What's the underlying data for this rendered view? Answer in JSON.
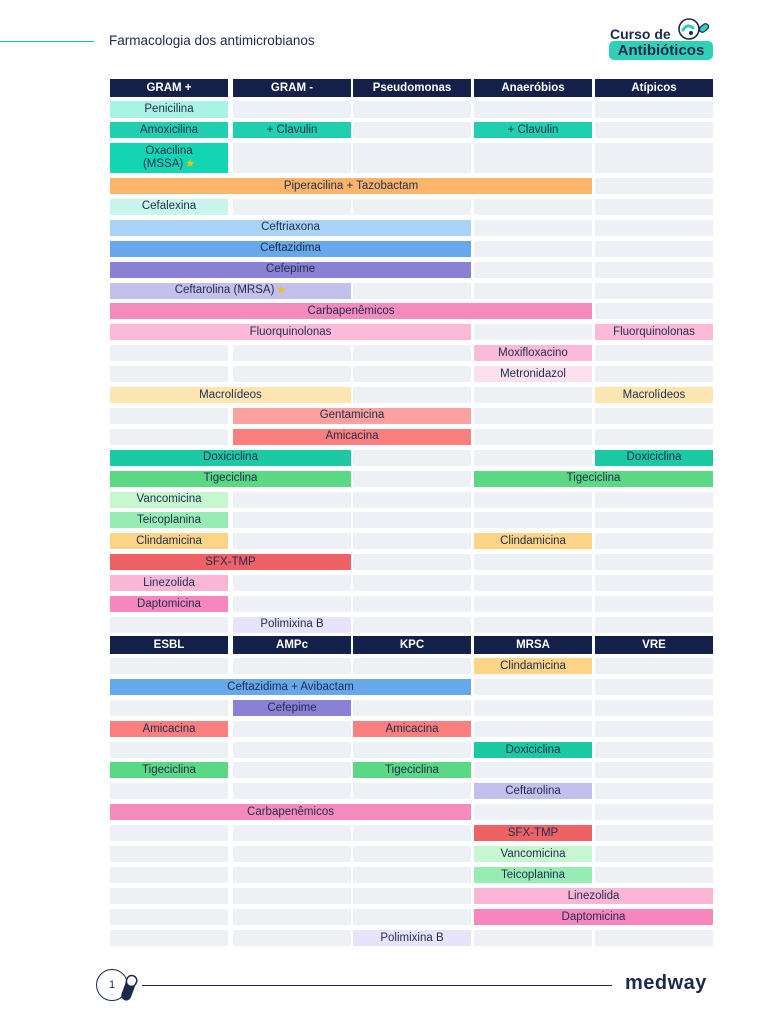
{
  "header": {
    "document_title": "Farmacologia dos antimicrobianos",
    "logo": {
      "line1": "Curso de",
      "line2": "Antibióticos",
      "icon": "bacteria-badge-icon"
    }
  },
  "section1": {
    "columns": [
      "GRAM +",
      "GRAM -",
      "Pseudomonas",
      "Anaeróbios",
      "Atípicos"
    ],
    "bars": [
      {
        "row": 0,
        "col": 0,
        "span": 1,
        "label": "Penicilina",
        "color": "#a8f3e6"
      },
      {
        "row": 1,
        "col": 0,
        "span": 1,
        "label": "Amoxicilina",
        "color": "#1fcfb0"
      },
      {
        "row": 1,
        "col": 1,
        "span": 1,
        "label": "+ Clavulin",
        "color": "#1fcfb0"
      },
      {
        "row": 1,
        "col": 3,
        "span": 1,
        "label": "+ Clavulin",
        "color": "#1fcfb0"
      },
      {
        "row": 2,
        "col": 0,
        "span": 1,
        "label": "Oxacilina",
        "label2": "(MSSA)",
        "star": true,
        "color": "#12d5b4"
      },
      {
        "row": 3,
        "col": 0,
        "span": 4,
        "label": "Piperacilina + Tazobactam",
        "color": "#ffb46b"
      },
      {
        "row": 4,
        "col": 0,
        "span": 1,
        "label": "Cefalexina",
        "color": "#c9f5ec"
      },
      {
        "row": 5,
        "col": 0,
        "span": 3,
        "label": "Ceftriaxona",
        "color": "#a9d2f7"
      },
      {
        "row": 6,
        "col": 0,
        "span": 3,
        "label": "Ceftazidima",
        "color": "#67a8ea"
      },
      {
        "row": 7,
        "col": 0,
        "span": 3,
        "label": "Cefepime",
        "color": "#8a80d4"
      },
      {
        "row": 8,
        "col": 0,
        "span": 2,
        "label": "Ceftarolina (MRSA)",
        "star": true,
        "color": "#c4c0ee"
      },
      {
        "row": 9,
        "col": 0,
        "span": 4,
        "label": "Carbapenêmicos",
        "color": "#f58bbd"
      },
      {
        "row": 10,
        "col": 0,
        "span": 3,
        "label": "Fluorquinolonas",
        "color": "#fdbad8"
      },
      {
        "row": 10,
        "col": 4,
        "span": 1,
        "label": "Fluorquinolonas",
        "color": "#fdbad8"
      },
      {
        "row": 11,
        "col": 3,
        "span": 1,
        "label": "Moxifloxacino",
        "color": "#fdbad8"
      },
      {
        "row": 12,
        "col": 3,
        "span": 1,
        "label": "Metronidazol",
        "color": "#fde0ee"
      },
      {
        "row": 13,
        "col": 0,
        "span": 2,
        "label": "Macrolídeos",
        "color": "#fde5b2"
      },
      {
        "row": 13,
        "col": 4,
        "span": 1,
        "label": "Macrolídeos",
        "color": "#fde5b2"
      },
      {
        "row": 14,
        "col": 1,
        "span": 2,
        "label": "Gentamicina",
        "color": "#fca0a0"
      },
      {
        "row": 15,
        "col": 1,
        "span": 2,
        "label": "Amicacina",
        "color": "#fb7f7f"
      },
      {
        "row": 16,
        "col": 0,
        "span": 2,
        "label": "Doxiciclina",
        "color": "#1bc9a3"
      },
      {
        "row": 16,
        "col": 4,
        "span": 1,
        "label": "Doxiciclina",
        "color": "#1bc9a3"
      },
      {
        "row": 17,
        "col": 0,
        "span": 2,
        "label": "Tigeciclina",
        "color": "#5bd883"
      },
      {
        "row": 17,
        "col": 3,
        "span": 2,
        "label": "Tigeciclina",
        "color": "#5bd883"
      },
      {
        "row": 18,
        "col": 0,
        "span": 1,
        "label": "Vancomicina",
        "color": "#c6f7d0"
      },
      {
        "row": 19,
        "col": 0,
        "span": 1,
        "label": "Teicoplanina",
        "color": "#97ecb4"
      },
      {
        "row": 20,
        "col": 0,
        "span": 1,
        "label": "Clindamicina",
        "color": "#fdd487"
      },
      {
        "row": 20,
        "col": 3,
        "span": 1,
        "label": "Clindamicina",
        "color": "#fdd487"
      },
      {
        "row": 21,
        "col": 0,
        "span": 2,
        "label": "SFX-TMP",
        "color": "#ee6266"
      },
      {
        "row": 22,
        "col": 0,
        "span": 1,
        "label": "Linezolida",
        "color": "#fbb6d6"
      },
      {
        "row": 23,
        "col": 0,
        "span": 1,
        "label": "Daptomicina",
        "color": "#f786bf"
      },
      {
        "row": 24,
        "col": 1,
        "span": 1,
        "label": "Polimixina B",
        "color": "#e6e3fb"
      }
    ]
  },
  "section2": {
    "columns": [
      "ESBL",
      "AMPc",
      "KPC",
      "MRSA",
      "VRE"
    ],
    "bars": [
      {
        "row": 0,
        "col": 3,
        "span": 1,
        "label": "Clindamicina",
        "color": "#fdd487"
      },
      {
        "row": 1,
        "col": 0,
        "span": 3,
        "label": "Ceftazidima + Avibactam",
        "color": "#67a8ea"
      },
      {
        "row": 2,
        "col": 1,
        "span": 1,
        "label": "Cefepime",
        "color": "#8a80d4"
      },
      {
        "row": 3,
        "col": 0,
        "span": 1,
        "label": "Amicacina",
        "color": "#fb7f7f"
      },
      {
        "row": 3,
        "col": 2,
        "span": 1,
        "label": "Amicacina",
        "color": "#fb7f7f"
      },
      {
        "row": 4,
        "col": 3,
        "span": 1,
        "label": "Doxiciclina",
        "color": "#1bc9a3"
      },
      {
        "row": 5,
        "col": 0,
        "span": 1,
        "label": "Tigeciclina",
        "color": "#5bd883"
      },
      {
        "row": 5,
        "col": 2,
        "span": 1,
        "label": "Tigeciclina",
        "color": "#5bd883"
      },
      {
        "row": 6,
        "col": 3,
        "span": 1,
        "label": "Ceftarolina",
        "color": "#c4c0ee"
      },
      {
        "row": 7,
        "col": 0,
        "span": 3,
        "label": "Carbapenêmicos",
        "color": "#f58bbd"
      },
      {
        "row": 8,
        "col": 3,
        "span": 1,
        "label": "SFX-TMP",
        "color": "#ee6266"
      },
      {
        "row": 9,
        "col": 3,
        "span": 1,
        "label": "Vancomicina",
        "color": "#c6f7d0"
      },
      {
        "row": 10,
        "col": 3,
        "span": 1,
        "label": "Teicoplanina",
        "color": "#97ecb4"
      },
      {
        "row": 11,
        "col": 3,
        "span": 2,
        "label": "Linezolida",
        "color": "#fbb6d6"
      },
      {
        "row": 12,
        "col": 3,
        "span": 2,
        "label": "Daptomicina",
        "color": "#f786bf"
      },
      {
        "row": 13,
        "col": 2,
        "span": 1,
        "label": "Polimixina B",
        "color": "#e6e3fb"
      }
    ]
  },
  "footer": {
    "page_number": "1",
    "brand": "medway",
    "icon": "pill-icon"
  }
}
